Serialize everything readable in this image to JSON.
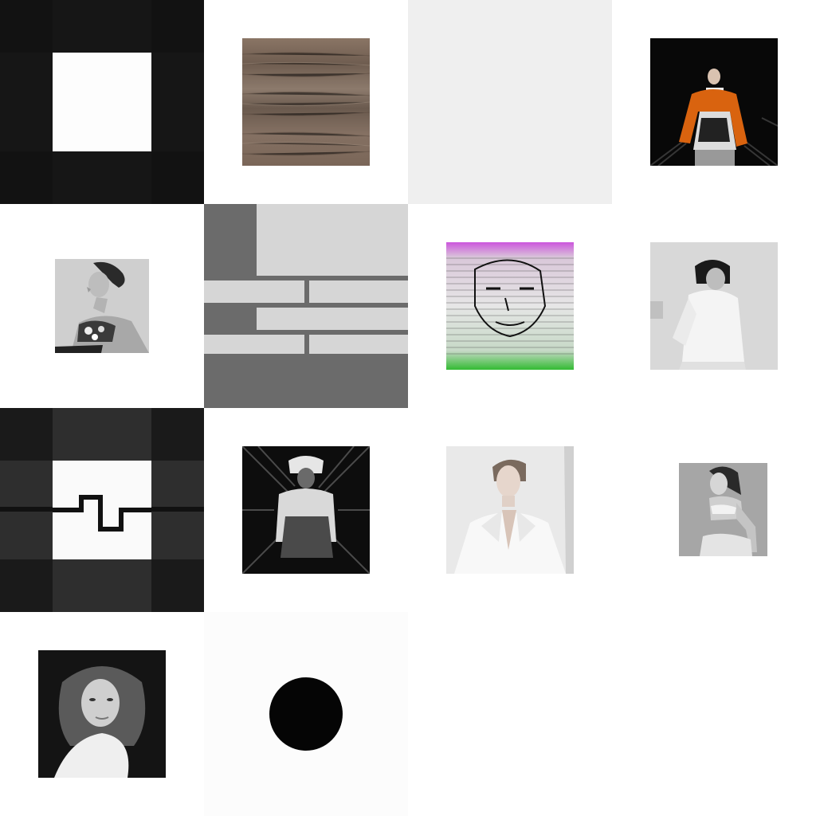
{
  "collage": {
    "tiles": [
      {
        "name": "dark-square-with-white-center",
        "kind": "graphic"
      },
      {
        "name": "wood-texture-photo",
        "kind": "photo"
      },
      {
        "name": "blank-light-gray-tile",
        "kind": "graphic"
      },
      {
        "name": "runway-orange-jacket-photo",
        "kind": "photo"
      },
      {
        "name": "profile-portrait-photo",
        "kind": "photo"
      },
      {
        "name": "gray-block-pattern",
        "kind": "graphic"
      },
      {
        "name": "glitch-face-photo",
        "kind": "photo"
      },
      {
        "name": "white-shirt-model-photo",
        "kind": "photo"
      },
      {
        "name": "square-wave-pattern",
        "kind": "graphic"
      },
      {
        "name": "fur-coat-model-photo",
        "kind": "photo"
      },
      {
        "name": "white-blazer-model-photo",
        "kind": "photo"
      },
      {
        "name": "seated-model-photo",
        "kind": "photo"
      },
      {
        "name": "girl-portrait-photo",
        "kind": "photo"
      },
      {
        "name": "black-circle-graphic",
        "kind": "graphic"
      }
    ]
  },
  "colors": {
    "dark_tile": "#121212",
    "light_gray_tile": "#efefef",
    "block_gray": "#6b6b6b",
    "block_light": "#d6d6d6",
    "orange_jacket": "#d9630f",
    "glitch_magenta": "#cc55dd",
    "glitch_green": "#33bb33"
  }
}
